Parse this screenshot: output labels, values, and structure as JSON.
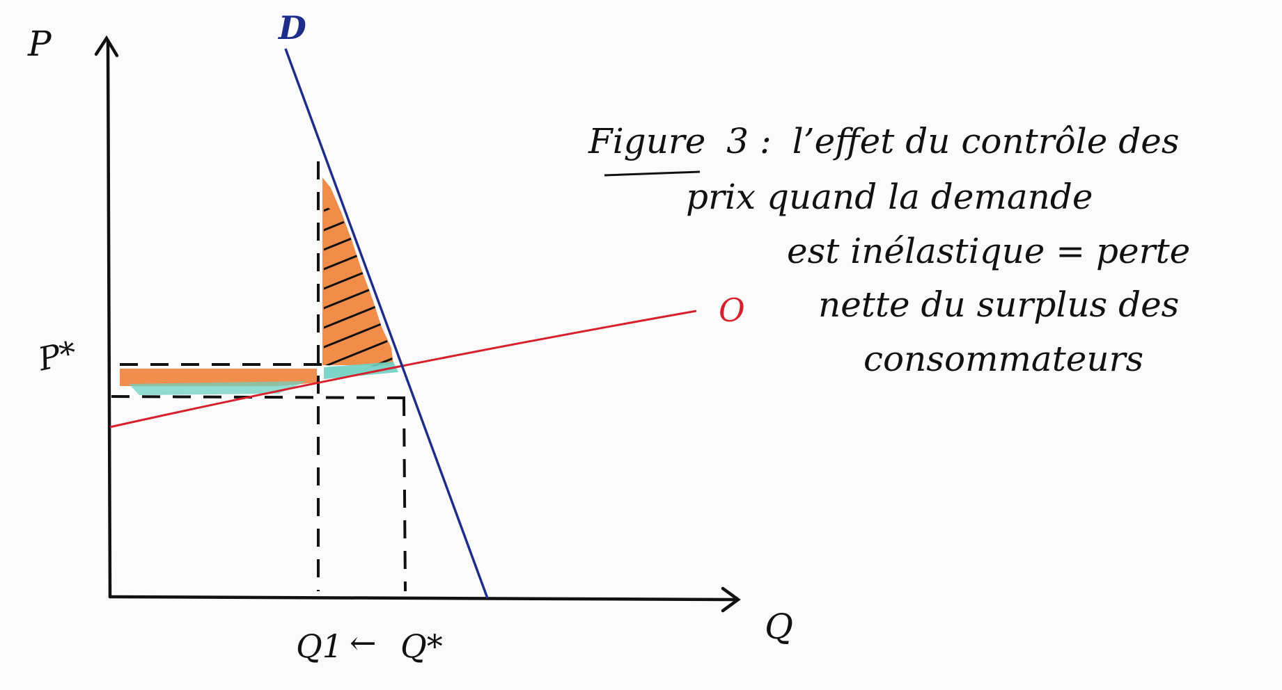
{
  "diagram": {
    "axis_y_label": "P",
    "axis_x_label": "Q",
    "demand_label": "D",
    "supply_label": "O",
    "price_label": "P*",
    "q1_label": "Q1",
    "q_arrow": "←",
    "qstar_label": "Q*",
    "colors": {
      "axes": "#111111",
      "demand": "#1f2d8a",
      "supply": "#d7202b",
      "surplus_orange": "#f0823a",
      "surplus_teal": "#6fd0c2",
      "hatch": "#111111",
      "background": "#fbfbfb"
    }
  },
  "caption": {
    "word": "Figure",
    "number": "3 :",
    "line1": "l’effet du contrôle des",
    "line2": "prix quand la demande",
    "line3": "est inélastique = perte",
    "line4": "nette du surplus des",
    "line5": "consommateurs"
  }
}
